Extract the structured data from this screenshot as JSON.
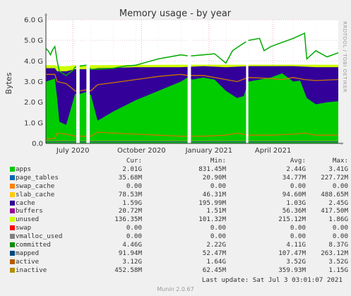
{
  "chart_data": {
    "type": "area",
    "title": "Memory usage - by year",
    "ylabel": "Bytes",
    "side_label": "RRDTOOL / TOBI OETIKER",
    "ylim": [
      0,
      6.0
    ],
    "y_ticks": [
      "0.0",
      "1.0 G",
      "2.0 G",
      "3.0 G",
      "4.0 G",
      "5.0 G",
      "6.0 G"
    ],
    "y_tick_values": [
      0,
      1,
      2,
      3,
      4,
      5,
      6
    ],
    "x_ticks": [
      "July 2020",
      "October 2020",
      "January 2021",
      "April 2021"
    ],
    "x_tick_values": [
      1.2,
      4.25,
      7.25,
      10.1
    ],
    "xlim": [
      0,
      13
    ],
    "gaps": [
      [
        1.35,
        1.5
      ],
      [
        1.8,
        1.95
      ],
      [
        6.3,
        6.45
      ],
      [
        8.9,
        9.0
      ]
    ],
    "series": [
      {
        "name": "apps",
        "color": "#00cc00",
        "points": [
          [
            0,
            3.0
          ],
          [
            0.4,
            3.15
          ],
          [
            0.5,
            2.2
          ],
          [
            0.6,
            1.05
          ],
          [
            0.9,
            0.9
          ],
          [
            1.3,
            2.4
          ],
          [
            1.5,
            2.4
          ],
          [
            1.8,
            2.5
          ],
          [
            2.0,
            2.35
          ],
          [
            2.3,
            1.1
          ],
          [
            3.0,
            1.55
          ],
          [
            4.0,
            2.1
          ],
          [
            5.0,
            2.55
          ],
          [
            6.0,
            3.0
          ],
          [
            6.3,
            3.2
          ],
          [
            6.5,
            3.1
          ],
          [
            7.0,
            3.2
          ],
          [
            7.5,
            3.1
          ],
          [
            8.0,
            2.55
          ],
          [
            8.5,
            2.2
          ],
          [
            8.8,
            2.3
          ],
          [
            9.0,
            3.0
          ],
          [
            9.5,
            3.1
          ],
          [
            10.0,
            3.2
          ],
          [
            10.5,
            3.4
          ],
          [
            11.0,
            3.0
          ],
          [
            11.3,
            3.05
          ],
          [
            11.6,
            2.2
          ],
          [
            12.0,
            1.9
          ],
          [
            12.5,
            2.0
          ],
          [
            13.0,
            2.05
          ]
        ]
      },
      {
        "name": "cache",
        "color": "#330099",
        "points": [
          [
            0,
            3.65
          ],
          [
            0.4,
            3.65
          ],
          [
            0.5,
            3.5
          ],
          [
            0.9,
            3.5
          ],
          [
            1.3,
            3.6
          ],
          [
            1.5,
            3.6
          ],
          [
            1.8,
            3.6
          ],
          [
            2.0,
            3.6
          ],
          [
            2.3,
            3.65
          ],
          [
            4.0,
            3.7
          ],
          [
            6.0,
            3.7
          ],
          [
            7.0,
            3.75
          ],
          [
            8.0,
            3.7
          ],
          [
            9.0,
            3.75
          ],
          [
            10.0,
            3.75
          ],
          [
            11.0,
            3.75
          ],
          [
            12.0,
            3.7
          ],
          [
            13.0,
            3.7
          ]
        ]
      },
      {
        "name": "unused",
        "color": "#ccff00",
        "points": [
          [
            0,
            3.8
          ],
          [
            0.4,
            3.8
          ],
          [
            0.5,
            3.75
          ],
          [
            0.9,
            3.75
          ],
          [
            1.3,
            3.8
          ],
          [
            2.3,
            3.8
          ],
          [
            6.0,
            3.82
          ],
          [
            13.0,
            3.82
          ]
        ]
      },
      {
        "name": "committed",
        "color": "#00aa00",
        "points": [
          [
            0,
            4.6
          ],
          [
            0.1,
            4.5
          ],
          [
            0.2,
            4.3
          ],
          [
            0.3,
            4.55
          ],
          [
            0.4,
            4.7
          ],
          [
            0.5,
            4.0
          ],
          [
            0.6,
            3.5
          ],
          [
            0.9,
            3.3
          ],
          [
            1.2,
            3.55
          ],
          [
            1.3,
            3.7
          ],
          [
            1.5,
            3.75
          ],
          [
            1.8,
            3.8
          ],
          [
            2.0,
            3.6
          ],
          [
            2.3,
            3.6
          ],
          [
            3.0,
            3.65
          ],
          [
            3.5,
            3.75
          ],
          [
            4.0,
            3.8
          ],
          [
            4.5,
            3.95
          ],
          [
            5.0,
            4.1
          ],
          [
            5.5,
            4.2
          ],
          [
            6.0,
            4.3
          ],
          [
            6.3,
            4.25
          ],
          [
            6.5,
            4.25
          ],
          [
            7.0,
            4.3
          ],
          [
            7.5,
            4.35
          ],
          [
            8.0,
            3.9
          ],
          [
            8.3,
            4.5
          ],
          [
            8.7,
            4.8
          ],
          [
            9.0,
            5.0
          ],
          [
            9.5,
            5.1
          ],
          [
            9.7,
            4.5
          ],
          [
            10.0,
            4.7
          ],
          [
            10.5,
            4.9
          ],
          [
            11.0,
            5.1
          ],
          [
            11.3,
            5.25
          ],
          [
            11.5,
            5.35
          ],
          [
            11.6,
            4.1
          ],
          [
            12.0,
            4.5
          ],
          [
            12.5,
            4.2
          ],
          [
            13.0,
            4.4
          ]
        ]
      },
      {
        "name": "active",
        "color": "#cc7700",
        "points": [
          [
            0,
            3.35
          ],
          [
            0.4,
            3.35
          ],
          [
            0.5,
            3.0
          ],
          [
            0.9,
            2.9
          ],
          [
            1.3,
            2.55
          ],
          [
            1.5,
            2.55
          ],
          [
            1.8,
            2.6
          ],
          [
            2.0,
            2.55
          ],
          [
            2.3,
            2.85
          ],
          [
            3.0,
            2.95
          ],
          [
            4.0,
            3.1
          ],
          [
            5.0,
            3.25
          ],
          [
            6.0,
            3.35
          ],
          [
            6.3,
            3.3
          ],
          [
            7.0,
            3.3
          ],
          [
            8.0,
            3.1
          ],
          [
            8.5,
            3.0
          ],
          [
            9.0,
            3.2
          ],
          [
            10.0,
            3.15
          ],
          [
            10.5,
            3.1
          ],
          [
            11.0,
            3.2
          ],
          [
            11.5,
            3.1
          ],
          [
            12.0,
            3.05
          ],
          [
            13.0,
            3.1
          ]
        ]
      },
      {
        "name": "inactive",
        "color": "#cc7700",
        "points": [
          [
            0,
            0.2
          ],
          [
            0.4,
            0.25
          ],
          [
            0.5,
            0.5
          ],
          [
            0.9,
            0.45
          ],
          [
            1.3,
            0.35
          ],
          [
            1.5,
            0.35
          ],
          [
            2.0,
            0.35
          ],
          [
            2.3,
            0.55
          ],
          [
            3.0,
            0.5
          ],
          [
            4.0,
            0.45
          ],
          [
            5.0,
            0.4
          ],
          [
            6.0,
            0.35
          ],
          [
            7.0,
            0.35
          ],
          [
            8.0,
            0.4
          ],
          [
            8.5,
            0.5
          ],
          [
            9.0,
            0.4
          ],
          [
            10.0,
            0.4
          ],
          [
            11.0,
            0.45
          ],
          [
            11.5,
            0.5
          ],
          [
            12.0,
            0.4
          ],
          [
            13.0,
            0.4
          ]
        ]
      },
      {
        "name": "swap_cache",
        "color": "#ff8800",
        "points": [
          [
            0,
            0.1
          ],
          [
            13.0,
            0.1
          ]
        ]
      },
      {
        "name": "mapped",
        "color": "#007777",
        "points": [
          [
            0,
            0.08
          ],
          [
            13.0,
            0.08
          ]
        ]
      }
    ]
  },
  "legend": {
    "headers": {
      "cur": "Cur:",
      "min": "Min:",
      "avg": "Avg:",
      "max": "Max:"
    },
    "rows": [
      {
        "name": "apps",
        "color": "#00cc00",
        "cur": "2.01G",
        "min": "831.45M",
        "avg": "2.44G",
        "max": "3.41G"
      },
      {
        "name": "page_tables",
        "color": "#0066b3",
        "cur": "35.68M",
        "min": "20.90M",
        "avg": "34.77M",
        "max": "227.72M"
      },
      {
        "name": "swap_cache",
        "color": "#ff8000",
        "cur": "0.00",
        "min": "0.00",
        "avg": "0.00",
        "max": "0.00"
      },
      {
        "name": "slab_cache",
        "color": "#ffcc00",
        "cur": "78.53M",
        "min": "46.31M",
        "avg": "94.60M",
        "max": "488.65M"
      },
      {
        "name": "cache",
        "color": "#330099",
        "cur": "1.59G",
        "min": "195.99M",
        "avg": "1.03G",
        "max": "2.45G"
      },
      {
        "name": "buffers",
        "color": "#990099",
        "cur": "20.72M",
        "min": "1.51M",
        "avg": "56.36M",
        "max": "417.50M"
      },
      {
        "name": "unused",
        "color": "#ccff00",
        "cur": "136.35M",
        "min": "101.32M",
        "avg": "215.12M",
        "max": "1.86G"
      },
      {
        "name": "swap",
        "color": "#ff0000",
        "cur": "0.00",
        "min": "0.00",
        "avg": "0.00",
        "max": "0.00"
      },
      {
        "name": "vmalloc_used",
        "color": "#808080",
        "cur": "0.00",
        "min": "0.00",
        "avg": "0.00",
        "max": "0.00"
      },
      {
        "name": "committed",
        "color": "#008f00",
        "cur": "4.46G",
        "min": "2.22G",
        "avg": "4.11G",
        "max": "8.37G"
      },
      {
        "name": "mapped",
        "color": "#00487d",
        "cur": "91.94M",
        "min": "52.47M",
        "avg": "107.47M",
        "max": "263.12M"
      },
      {
        "name": "active",
        "color": "#b35a00",
        "cur": "3.12G",
        "min": "1.64G",
        "avg": "3.52G",
        "max": "3.52G"
      },
      {
        "name": "inactive",
        "color": "#b38f00",
        "cur": "452.58M",
        "min": "62.45M",
        "avg": "359.93M",
        "max": "1.15G"
      }
    ]
  },
  "footer": {
    "last_update": "Last update: Sat Jul  3 03:01:07 2021",
    "munin": "Munin 2.0.67"
  }
}
